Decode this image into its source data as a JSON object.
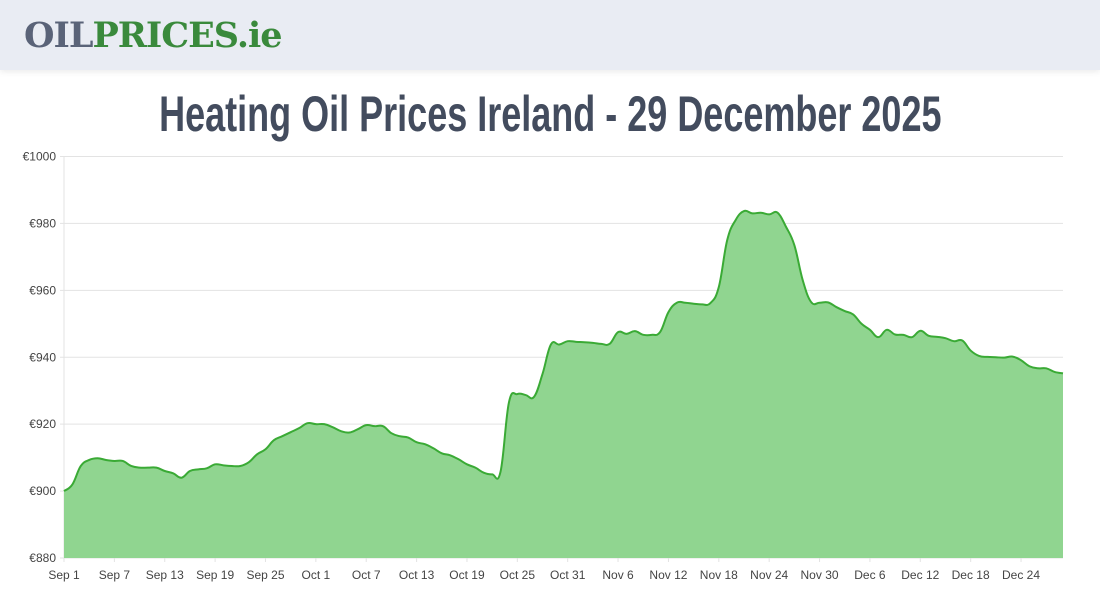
{
  "header": {
    "logo_part1": "OIL",
    "logo_part2": "PRICES.ie"
  },
  "page_title": "Heating Oil Prices Ireland - 29 December 2025",
  "colors": {
    "line": "#3aaa35",
    "fill": "#90d590",
    "grid": "#e3e3e3",
    "header_bg": "#e9ecf3",
    "title": "#434c5e"
  },
  "chart_data": {
    "type": "area",
    "title": "",
    "xlabel": "",
    "ylabel": "",
    "ylim": [
      880,
      1000
    ],
    "grid": true,
    "legend": "none",
    "y_ticks": [
      880,
      900,
      920,
      940,
      960,
      980,
      1000
    ],
    "y_tick_labels": [
      "€880",
      "€900",
      "€920",
      "€940",
      "€960",
      "€980",
      "€1000"
    ],
    "x_tick_labels": [
      "Sep 1",
      "Sep 7",
      "Sep 13",
      "Sep 19",
      "Sep 25",
      "Oct 1",
      "Oct 7",
      "Oct 13",
      "Oct 19",
      "Oct 25",
      "Oct 31",
      "Nov 6",
      "Nov 12",
      "Nov 18",
      "Nov 24",
      "Nov 30",
      "Dec 6",
      "Dec 12",
      "Dec 18",
      "Dec 24"
    ],
    "x": [
      "Sep 1",
      "Sep 2",
      "Sep 3",
      "Sep 4",
      "Sep 5",
      "Sep 6",
      "Sep 7",
      "Sep 8",
      "Sep 9",
      "Sep 10",
      "Sep 11",
      "Sep 12",
      "Sep 13",
      "Sep 14",
      "Sep 15",
      "Sep 16",
      "Sep 17",
      "Sep 18",
      "Sep 19",
      "Sep 20",
      "Sep 21",
      "Sep 22",
      "Sep 23",
      "Sep 24",
      "Sep 25",
      "Sep 26",
      "Sep 27",
      "Sep 28",
      "Sep 29",
      "Sep 30",
      "Oct 1",
      "Oct 2",
      "Oct 3",
      "Oct 4",
      "Oct 5",
      "Oct 6",
      "Oct 7",
      "Oct 8",
      "Oct 9",
      "Oct 10",
      "Oct 11",
      "Oct 12",
      "Oct 13",
      "Oct 14",
      "Oct 15",
      "Oct 16",
      "Oct 17",
      "Oct 18",
      "Oct 19",
      "Oct 20",
      "Oct 21",
      "Oct 22",
      "Oct 23",
      "Oct 24",
      "Oct 25",
      "Oct 26",
      "Oct 27",
      "Oct 28",
      "Oct 29",
      "Oct 30",
      "Oct 31",
      "Nov 1",
      "Nov 2",
      "Nov 3",
      "Nov 4",
      "Nov 5",
      "Nov 6",
      "Nov 7",
      "Nov 8",
      "Nov 9",
      "Nov 10",
      "Nov 11",
      "Nov 12",
      "Nov 13",
      "Nov 14",
      "Nov 15",
      "Nov 16",
      "Nov 17",
      "Nov 18",
      "Nov 19",
      "Nov 20",
      "Nov 21",
      "Nov 22",
      "Nov 23",
      "Nov 24",
      "Nov 25",
      "Nov 26",
      "Nov 27",
      "Nov 28",
      "Nov 29",
      "Nov 30",
      "Dec 1",
      "Dec 2",
      "Dec 3",
      "Dec 4",
      "Dec 5",
      "Dec 6",
      "Dec 7",
      "Dec 8",
      "Dec 9",
      "Dec 10",
      "Dec 11",
      "Dec 12",
      "Dec 13",
      "Dec 14",
      "Dec 15",
      "Dec 16",
      "Dec 17",
      "Dec 18",
      "Dec 19",
      "Dec 20",
      "Dec 21",
      "Dec 22",
      "Dec 23",
      "Dec 24",
      "Dec 25",
      "Dec 26",
      "Dec 27",
      "Dec 28",
      "Dec 29"
    ],
    "values": [
      900,
      902,
      907.5,
      909.3,
      909.8,
      909.3,
      909,
      909,
      907.5,
      907,
      907,
      907,
      906,
      905.3,
      904,
      906,
      906.5,
      906.8,
      908,
      907.7,
      907.5,
      907.5,
      908.6,
      911,
      912.5,
      915.2,
      916.4,
      917.6,
      918.8,
      920.3,
      920,
      920,
      919.1,
      917.9,
      917.5,
      918.5,
      919.7,
      919.4,
      919.4,
      917.3,
      916.4,
      916,
      914.6,
      914,
      912.8,
      911.3,
      910.7,
      909.5,
      908,
      907,
      905.5,
      905,
      905.8,
      926.5,
      929,
      928.7,
      928.2,
      935,
      943.8,
      943.8,
      944.8,
      944.6,
      944.5,
      944.3,
      944,
      944,
      947.5,
      947,
      947.8,
      946.7,
      946.7,
      947.5,
      953.5,
      956.3,
      956.3,
      956,
      955.8,
      956.2,
      961,
      975,
      981,
      983.7,
      983,
      983.2,
      982.7,
      983.2,
      979,
      973.5,
      963,
      956.5,
      956.3,
      956.4,
      955,
      953.8,
      952.8,
      950,
      948.2,
      946,
      948.2,
      946.8,
      946.7,
      946,
      947.9,
      946.4,
      946.1,
      945.7,
      944.8,
      945,
      942,
      940.4,
      940.1,
      940,
      939.9,
      940.2,
      939.1,
      937.3,
      936.7,
      936.7,
      935.6,
      935.2
    ]
  }
}
